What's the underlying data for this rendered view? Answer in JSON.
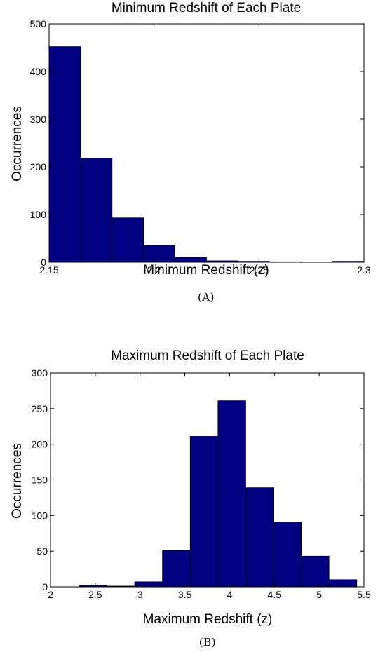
{
  "chart_data": [
    {
      "type": "bar",
      "title": "Minimum Redshift of Each Plate",
      "xlabel": "Minimum Redshift (z)",
      "ylabel": "Occurrences",
      "caption": "(A)",
      "xlim": [
        2.15,
        2.3
      ],
      "ylim": [
        0,
        500
      ],
      "xticks": [
        2.15,
        2.2,
        2.25,
        2.3
      ],
      "xtick_labels": [
        "2.15",
        "2.2",
        "2.25",
        "2.3"
      ],
      "yticks": [
        0,
        100,
        200,
        300,
        400,
        500
      ],
      "ytick_labels": [
        "0",
        "100",
        "200",
        "300",
        "400",
        "500"
      ],
      "bar_color": "#000080",
      "bins": [
        {
          "x0": 2.15,
          "x1": 2.165,
          "value": 452
        },
        {
          "x0": 2.165,
          "x1": 2.18,
          "value": 218
        },
        {
          "x0": 2.18,
          "x1": 2.195,
          "value": 93
        },
        {
          "x0": 2.195,
          "x1": 2.21,
          "value": 35
        },
        {
          "x0": 2.21,
          "x1": 2.225,
          "value": 10
        },
        {
          "x0": 2.225,
          "x1": 2.24,
          "value": 3
        },
        {
          "x0": 2.24,
          "x1": 2.255,
          "value": 2
        },
        {
          "x0": 2.255,
          "x1": 2.27,
          "value": 1
        },
        {
          "x0": 2.27,
          "x1": 2.285,
          "value": 0
        },
        {
          "x0": 2.285,
          "x1": 2.3,
          "value": 2
        }
      ],
      "grid": false
    },
    {
      "type": "bar",
      "title": "Maximum Redshift of Each Plate",
      "xlabel": "Maximum Redshift (z)",
      "ylabel": "Occurrences",
      "caption": "(B)",
      "xlim": [
        2,
        5.5
      ],
      "ylim": [
        0,
        300
      ],
      "xticks": [
        2,
        2.5,
        3,
        3.5,
        4,
        4.5,
        5,
        5.5
      ],
      "xtick_labels": [
        "2",
        "2.5",
        "3",
        "3.5",
        "4",
        "4.5",
        "5",
        "5.5"
      ],
      "yticks": [
        0,
        50,
        100,
        150,
        200,
        250,
        300
      ],
      "ytick_labels": [
        "0",
        "50",
        "100",
        "150",
        "200",
        "250",
        "300"
      ],
      "bar_color": "#000080",
      "bins": [
        {
          "x0": 2.32,
          "x1": 2.63,
          "value": 2
        },
        {
          "x0": 2.63,
          "x1": 2.94,
          "value": 1
        },
        {
          "x0": 2.94,
          "x1": 3.25,
          "value": 7
        },
        {
          "x0": 3.25,
          "x1": 3.56,
          "value": 51
        },
        {
          "x0": 3.56,
          "x1": 3.87,
          "value": 211
        },
        {
          "x0": 3.87,
          "x1": 4.18,
          "value": 261
        },
        {
          "x0": 4.18,
          "x1": 4.49,
          "value": 139
        },
        {
          "x0": 4.49,
          "x1": 4.8,
          "value": 91
        },
        {
          "x0": 4.8,
          "x1": 5.11,
          "value": 43
        },
        {
          "x0": 5.11,
          "x1": 5.42,
          "value": 10
        }
      ],
      "grid": false
    }
  ]
}
